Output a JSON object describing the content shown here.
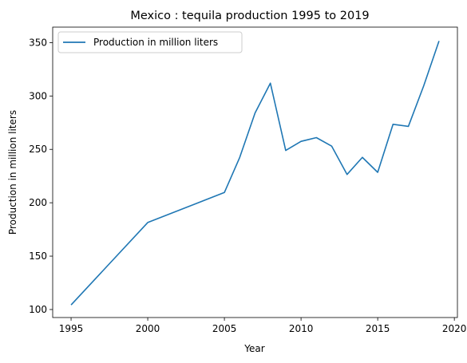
{
  "chart_data": {
    "type": "line",
    "title": "Mexico : tequila production 1995 to 2019",
    "xlabel": "Year",
    "ylabel": "Production in million liters",
    "xlim": [
      1993.8,
      2020.2
    ],
    "ylim": [
      92.5,
      364.5
    ],
    "x_ticks": [
      1995,
      2000,
      2005,
      2010,
      2015,
      2020
    ],
    "y_ticks": [
      100,
      150,
      200,
      250,
      300,
      350
    ],
    "grid": false,
    "legend_position": "top-left",
    "series": [
      {
        "name": "Production in million liters",
        "color": "#1f77b4",
        "x": [
          1995,
          2000,
          2005,
          2006,
          2007,
          2008,
          2009,
          2010,
          2011,
          2012,
          2013,
          2014,
          2015,
          2016,
          2017,
          2018,
          2019
        ],
        "y": [
          104.3,
          181.5,
          209.6,
          242.5,
          284.1,
          312.0,
          249.0,
          257.5,
          261.0,
          253.0,
          226.5,
          242.5,
          228.5,
          273.5,
          271.5,
          309.5,
          351.5
        ]
      }
    ]
  }
}
